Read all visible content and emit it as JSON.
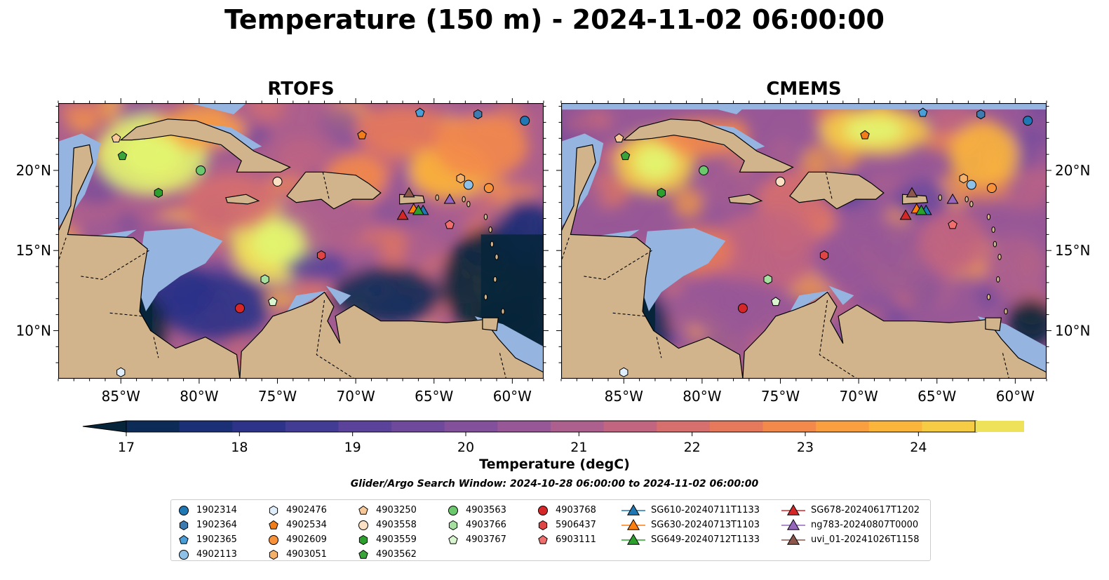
{
  "title": "Temperature (150 m) - 2024-11-02 06:00:00",
  "panels": [
    {
      "title": "RTOFS",
      "style": "rtofs"
    },
    {
      "title": "CMEMS",
      "style": "cmems"
    }
  ],
  "lon_ticks": [
    "85°W",
    "80°W",
    "75°W",
    "70°W",
    "65°W",
    "60°W"
  ],
  "lat_ticks": [
    "20°N",
    "15°N",
    "10°N"
  ],
  "map_extent": {
    "lon": [
      -89,
      -58
    ],
    "lat": [
      7,
      24.2
    ]
  },
  "colorbar": {
    "label": "Temperature (degC)",
    "ticks": [
      "17",
      "18",
      "19",
      "20",
      "21",
      "22",
      "23",
      "24"
    ],
    "range": [
      16.5,
      24.5
    ],
    "colors": [
      "#06253a",
      "#0d2b57",
      "#1b2f76",
      "#2c3388",
      "#433c95",
      "#5b429b",
      "#6f4a9c",
      "#83519b",
      "#985897",
      "#ad5f8d",
      "#c26580",
      "#d66f6e",
      "#e6795b",
      "#f38a4b",
      "#fa9f40",
      "#fbb53b",
      "#f7cc45",
      "#eee25b",
      "#e2f46f"
    ],
    "land_color": "#d2b48c",
    "shelf_color": "#95b4e0"
  },
  "search_window": "Glider/Argo Search Window: 2024-10-28 06:00:00 to 2024-11-02 06:00:00",
  "platforms": [
    {
      "id": "1902314",
      "marker": "circle",
      "color": "#1f77b4",
      "lon": -59.2,
      "lat": 23.1
    },
    {
      "id": "1902364",
      "marker": "hexagon",
      "color": "#3d7bb0",
      "lon": -62.2,
      "lat": 23.5
    },
    {
      "id": "1902365",
      "marker": "pentagon",
      "color": "#4a9fd8",
      "lon": -65.9,
      "lat": 23.6
    },
    {
      "id": "4902113",
      "marker": "circle",
      "color": "#8fc1e8",
      "lon": -62.8,
      "lat": 19.1
    },
    {
      "id": "4902476",
      "marker": "hexagon",
      "color": "#dfeefa",
      "lon": -85.0,
      "lat": 7.4
    },
    {
      "id": "4902534",
      "marker": "pentagon",
      "color": "#f07d1a",
      "lon": -69.6,
      "lat": 22.2
    },
    {
      "id": "4902609",
      "marker": "circle",
      "color": "#f7913a",
      "lon": -61.5,
      "lat": 18.9
    },
    {
      "id": "4903051",
      "marker": "hexagon",
      "color": "#f5b06a",
      "lon": -63.3,
      "lat": 19.5
    },
    {
      "id": "4903250",
      "marker": "pentagon",
      "color": "#f7c999",
      "lon": -85.3,
      "lat": 22.0
    },
    {
      "id": "4903558",
      "marker": "circle",
      "color": "#fbe0c3",
      "lon": -75.0,
      "lat": 19.3
    },
    {
      "id": "4903559",
      "marker": "hexagon",
      "color": "#2ca02c",
      "lon": -82.6,
      "lat": 18.6
    },
    {
      "id": "4903562",
      "marker": "pentagon",
      "color": "#3aa43a",
      "lon": -84.9,
      "lat": 20.9
    },
    {
      "id": "4903563",
      "marker": "circle",
      "color": "#6cc86c",
      "lon": -79.9,
      "lat": 20.0
    },
    {
      "id": "4903766",
      "marker": "hexagon",
      "color": "#a6e0a0",
      "lon": -75.8,
      "lat": 13.2
    },
    {
      "id": "4903767",
      "marker": "pentagon",
      "color": "#d8f5d0",
      "lon": -75.3,
      "lat": 11.8
    },
    {
      "id": "4903768",
      "marker": "circle",
      "color": "#d62728",
      "lon": -77.4,
      "lat": 11.4
    },
    {
      "id": "5906437",
      "marker": "hexagon",
      "color": "#e04545",
      "lon": -72.2,
      "lat": 14.7
    },
    {
      "id": "6903111",
      "marker": "pentagon",
      "color": "#ef6f6f",
      "lon": -64.0,
      "lat": 16.6
    },
    {
      "id": "SG610-20240711T1133",
      "marker": "triangle",
      "color": "#1f77b4",
      "lon": -65.7,
      "lat": 17.5
    },
    {
      "id": "SG630-20240713T1103",
      "marker": "triangle",
      "color": "#ff7f0e",
      "lon": -66.3,
      "lat": 17.6
    },
    {
      "id": "SG649-20240712T1133",
      "marker": "triangle",
      "color": "#2ca02c",
      "lon": -66.0,
      "lat": 17.5
    },
    {
      "id": "SG678-20240617T1202",
      "marker": "triangle",
      "color": "#d62728",
      "lon": -67.0,
      "lat": 17.2
    },
    {
      "id": "ng783-20240807T0000",
      "marker": "triangle",
      "color": "#9467bd",
      "lon": -64.0,
      "lat": 18.2
    },
    {
      "id": "uvi_01-20241026T1158",
      "marker": "triangle",
      "color": "#8c564b",
      "lon": -66.6,
      "lat": 18.6
    }
  ]
}
